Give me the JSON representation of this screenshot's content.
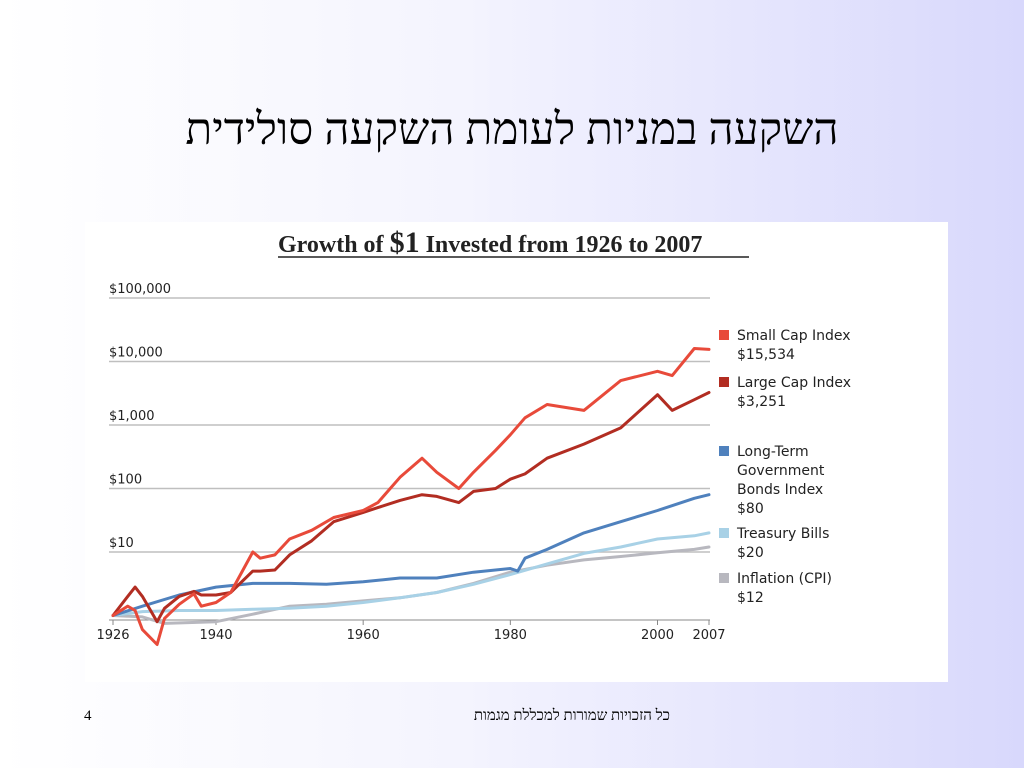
{
  "slide": {
    "title": "השקעה במניות לעומת השקעה סולידית",
    "page_number": "4",
    "footer": "כל הזכויות שמורות למכללת מגמות"
  },
  "chart_data": {
    "type": "line",
    "title_parts": [
      "Growth of ",
      "$1",
      " Invested from 1926 to 2007"
    ],
    "title": "Growth of $1 Invested from 1926 to 2007",
    "y_scale": "log",
    "ylim": [
      0.6,
      100000
    ],
    "xlim": [
      1926,
      2007
    ],
    "y_ticks": [
      {
        "value": 10,
        "label": "$10"
      },
      {
        "value": 100,
        "label": "$100"
      },
      {
        "value": 1000,
        "label": "$1,000"
      },
      {
        "value": 10000,
        "label": "$10,000"
      },
      {
        "value": 100000,
        "label": "$100,000"
      }
    ],
    "x_ticks": [
      {
        "value": 1926,
        "label": "1926"
      },
      {
        "value": 1940,
        "label": "1940"
      },
      {
        "value": 1960,
        "label": "1960"
      },
      {
        "value": 1980,
        "label": "1980"
      },
      {
        "value": 2000,
        "label": "2000"
      },
      {
        "value": 2007,
        "label": "2007"
      }
    ],
    "grid": "horizontal",
    "legend_position": "right",
    "series": [
      {
        "name": "Small Cap Index",
        "end_value": "$15,534",
        "color": "#e84a3a",
        "x": [
          1926,
          1928,
          1929,
          1930,
          1932,
          1933,
          1935,
          1937,
          1938,
          1940,
          1942,
          1945,
          1946,
          1948,
          1950,
          1953,
          1956,
          1960,
          1962,
          1965,
          1968,
          1970,
          1973,
          1975,
          1978,
          1980,
          1982,
          1985,
          1990,
          1995,
          2000,
          2002,
          2005,
          2007
        ],
        "y": [
          1,
          1.4,
          1.2,
          0.6,
          0.35,
          0.9,
          1.5,
          2.2,
          1.4,
          1.6,
          2.3,
          10,
          8,
          9,
          16,
          22,
          35,
          45,
          60,
          150,
          300,
          180,
          100,
          180,
          400,
          700,
          1300,
          2100,
          1700,
          5000,
          7000,
          6000,
          16000,
          15534
        ]
      },
      {
        "name": "Large Cap Index",
        "end_value": "$3,251",
        "color": "#b22d22",
        "x": [
          1926,
          1928,
          1929,
          1930,
          1932,
          1933,
          1935,
          1937,
          1938,
          1940,
          1942,
          1945,
          1946,
          1948,
          1950,
          1953,
          1956,
          1960,
          1962,
          1965,
          1968,
          1970,
          1973,
          1975,
          1978,
          1980,
          1982,
          1985,
          1990,
          1995,
          2000,
          2002,
          2005,
          2007
        ],
        "y": [
          1,
          2,
          2.8,
          2,
          0.8,
          1.3,
          2,
          2.4,
          2.1,
          2.1,
          2.3,
          5,
          5,
          5.2,
          9,
          15,
          30,
          42,
          50,
          65,
          80,
          75,
          60,
          90,
          100,
          140,
          170,
          300,
          500,
          900,
          3000,
          1700,
          2500,
          3251
        ]
      },
      {
        "name": "Long-Term Government Bonds Index",
        "end_value": "$80",
        "color": "#4f81bd",
        "x": [
          1926,
          1930,
          1935,
          1940,
          1945,
          1950,
          1955,
          1960,
          1965,
          1970,
          1975,
          1980,
          1981,
          1982,
          1985,
          1990,
          1995,
          2000,
          2005,
          2007
        ],
        "y": [
          1,
          1.4,
          2.1,
          2.8,
          3.2,
          3.2,
          3.1,
          3.4,
          3.9,
          3.9,
          4.8,
          5.5,
          5,
          8,
          11,
          20,
          30,
          45,
          70,
          80
        ]
      },
      {
        "name": "Treasury Bills",
        "end_value": "$20",
        "color": "#a8d1e6",
        "x": [
          1926,
          1930,
          1935,
          1940,
          1945,
          1950,
          1955,
          1960,
          1965,
          1970,
          1975,
          1980,
          1985,
          1990,
          1995,
          2000,
          2005,
          2007
        ],
        "y": [
          1,
          1.15,
          1.2,
          1.2,
          1.25,
          1.3,
          1.4,
          1.6,
          1.9,
          2.3,
          3.1,
          4.4,
          6.5,
          9.5,
          12,
          16,
          18,
          20
        ]
      },
      {
        "name": "Inflation (CPI)",
        "end_value": "$12",
        "color": "#b8b8bf",
        "x": [
          1926,
          1930,
          1933,
          1940,
          1945,
          1950,
          1955,
          1960,
          1965,
          1970,
          1975,
          1980,
          1985,
          1990,
          1995,
          2000,
          2005,
          2007
        ],
        "y": [
          1,
          0.95,
          0.75,
          0.8,
          1.05,
          1.4,
          1.5,
          1.7,
          1.9,
          2.3,
          3.2,
          4.8,
          6.2,
          7.5,
          8.5,
          9.7,
          11,
          12
        ]
      }
    ]
  }
}
